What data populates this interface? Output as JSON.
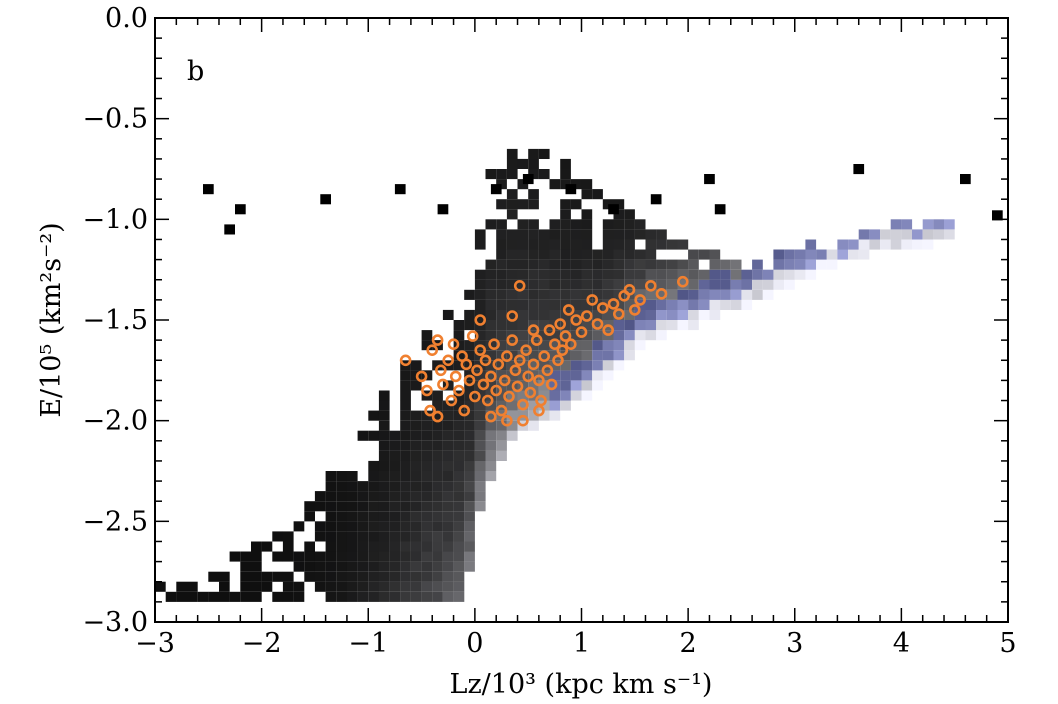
{
  "chart_data": {
    "type": "scatter",
    "panel_label": "b",
    "xlabel": "Lz/10³ (kpc km s⁻¹)",
    "ylabel": "E/10⁵ (km²s⁻²)",
    "xlim": [
      -3,
      5
    ],
    "ylim": [
      -3.0,
      0.0
    ],
    "x_ticks": [
      "−3",
      "−2",
      "−1",
      "0",
      "1",
      "2",
      "3",
      "4",
      "5"
    ],
    "y_ticks": [
      "0.0",
      "−0.5",
      "−1.0",
      "−1.5",
      "−2.0",
      "−2.5",
      "−3.0"
    ],
    "grid": false,
    "background_density": {
      "description_type": "2D histogram",
      "colormap": "bone",
      "ridge_points": [
        [
          -0.1,
          -2.9
        ],
        [
          0.1,
          -2.3
        ],
        [
          0.4,
          -2.05
        ],
        [
          0.8,
          -1.95
        ],
        [
          1.2,
          -1.8
        ],
        [
          1.6,
          -1.6
        ],
        [
          2.1,
          -1.5
        ],
        [
          2.6,
          -1.4
        ],
        [
          3.2,
          -1.25
        ],
        [
          3.7,
          -1.15
        ],
        [
          4.4,
          -1.1
        ]
      ],
      "outlier_bins": [
        [
          -2.5,
          -0.85
        ],
        [
          -2.2,
          -0.95
        ],
        [
          -2.3,
          -1.05
        ],
        [
          -1.4,
          -0.9
        ],
        [
          -0.7,
          -0.85
        ],
        [
          -0.3,
          -0.95
        ],
        [
          0.2,
          -0.85
        ],
        [
          0.5,
          -0.8
        ],
        [
          0.9,
          -0.85
        ],
        [
          1.3,
          -0.95
        ],
        [
          1.7,
          -0.9
        ],
        [
          2.2,
          -0.8
        ],
        [
          2.3,
          -0.95
        ],
        [
          3.6,
          -0.75
        ],
        [
          4.6,
          -0.8
        ],
        [
          4.9,
          -0.98
        ]
      ]
    },
    "series": [
      {
        "marker": "open-circle",
        "color": "#f08030",
        "points": [
          [
            -0.65,
            -1.7
          ],
          [
            -0.5,
            -1.78
          ],
          [
            -0.45,
            -1.85
          ],
          [
            -0.42,
            -1.95
          ],
          [
            -0.4,
            -1.65
          ],
          [
            -0.35,
            -1.6
          ],
          [
            -0.32,
            -1.75
          ],
          [
            -0.3,
            -1.82
          ],
          [
            -0.25,
            -1.7
          ],
          [
            -0.22,
            -1.9
          ],
          [
            -0.2,
            -1.62
          ],
          [
            -0.18,
            -1.78
          ],
          [
            -0.15,
            -1.85
          ],
          [
            -0.12,
            -1.68
          ],
          [
            -0.1,
            -1.95
          ],
          [
            -0.08,
            -1.72
          ],
          [
            -0.05,
            -1.8
          ],
          [
            -0.02,
            -1.58
          ],
          [
            0.0,
            -1.88
          ],
          [
            0.02,
            -1.75
          ],
          [
            0.05,
            -1.65
          ],
          [
            0.05,
            -1.5
          ],
          [
            0.08,
            -1.82
          ],
          [
            0.1,
            -1.7
          ],
          [
            0.12,
            -1.9
          ],
          [
            0.15,
            -1.78
          ],
          [
            0.18,
            -1.62
          ],
          [
            0.2,
            -1.85
          ],
          [
            0.22,
            -1.72
          ],
          [
            0.25,
            -1.95
          ],
          [
            0.28,
            -1.8
          ],
          [
            0.3,
            -1.68
          ],
          [
            0.32,
            -1.88
          ],
          [
            0.35,
            -1.6
          ],
          [
            0.35,
            -1.48
          ],
          [
            0.38,
            -1.75
          ],
          [
            0.4,
            -1.83
          ],
          [
            0.42,
            -1.7
          ],
          [
            0.42,
            -1.33
          ],
          [
            0.45,
            -1.92
          ],
          [
            0.48,
            -1.65
          ],
          [
            0.5,
            -1.78
          ],
          [
            0.52,
            -1.86
          ],
          [
            0.55,
            -1.72
          ],
          [
            0.58,
            -1.6
          ],
          [
            0.6,
            -1.8
          ],
          [
            0.62,
            -1.9
          ],
          [
            0.65,
            -1.68
          ],
          [
            0.68,
            -1.75
          ],
          [
            0.7,
            -1.55
          ],
          [
            0.72,
            -1.82
          ],
          [
            0.75,
            -1.62
          ],
          [
            0.78,
            -1.7
          ],
          [
            0.8,
            -1.52
          ],
          [
            0.82,
            -1.65
          ],
          [
            0.85,
            -1.58
          ],
          [
            0.88,
            -1.45
          ],
          [
            0.9,
            -1.62
          ],
          [
            0.95,
            -1.5
          ],
          [
            1.0,
            -1.56
          ],
          [
            1.05,
            -1.48
          ],
          [
            1.1,
            -1.4
          ],
          [
            1.15,
            -1.52
          ],
          [
            1.2,
            -1.44
          ],
          [
            1.25,
            -1.55
          ],
          [
            1.3,
            -1.42
          ],
          [
            1.35,
            -1.47
          ],
          [
            1.4,
            -1.38
          ],
          [
            1.45,
            -1.35
          ],
          [
            1.5,
            -1.45
          ],
          [
            1.55,
            -1.4
          ],
          [
            1.65,
            -1.33
          ],
          [
            1.75,
            -1.37
          ],
          [
            1.95,
            -1.31
          ],
          [
            0.3,
            -2.0
          ],
          [
            0.45,
            -2.0
          ],
          [
            0.15,
            -1.98
          ],
          [
            -0.35,
            -1.98
          ],
          [
            0.6,
            -1.95
          ],
          [
            0.55,
            -1.55
          ]
        ]
      }
    ]
  }
}
